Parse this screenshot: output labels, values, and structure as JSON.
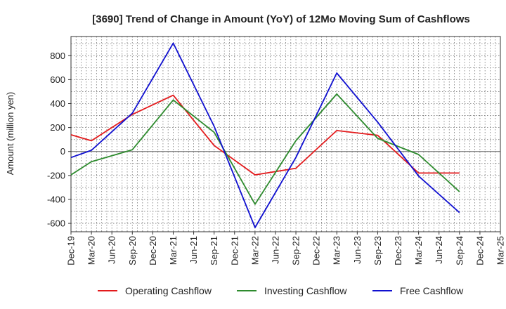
{
  "chart_data": {
    "type": "line",
    "title": "[3690]  Trend of Change in Amount (YoY) of 12Mo Moving Sum of Cashflows",
    "xlabel": "",
    "ylabel": "Amount (million yen)",
    "ylim": [
      -670,
      960
    ],
    "yticks": [
      -600,
      -400,
      -200,
      0,
      200,
      400,
      600,
      800
    ],
    "categories": [
      "Dec-19",
      "Mar-20",
      "Jun-20",
      "Sep-20",
      "Dec-20",
      "Mar-21",
      "Jun-21",
      "Sep-21",
      "Dec-21",
      "Mar-22",
      "Jun-22",
      "Sep-22",
      "Dec-22",
      "Mar-23",
      "Jun-23",
      "Sep-23",
      "Dec-23",
      "Mar-24",
      "Jun-24",
      "Sep-24",
      "Dec-24",
      "Mar-25"
    ],
    "grid": true,
    "legend_position": "bottom",
    "series": [
      {
        "name": "Operating Cashflow",
        "color": "#e31a1c",
        "values": [
          140,
          90,
          null,
          310,
          null,
          470,
          null,
          50,
          null,
          -195,
          null,
          -140,
          null,
          175,
          null,
          135,
          null,
          -180,
          null,
          -180,
          null,
          null
        ]
      },
      {
        "name": "Investing Cashflow",
        "color": "#2e8b2e",
        "values": [
          -195,
          -85,
          null,
          15,
          null,
          430,
          null,
          160,
          null,
          -440,
          null,
          90,
          null,
          480,
          null,
          110,
          null,
          -25,
          null,
          -335,
          null,
          null
        ]
      },
      {
        "name": "Free Cashflow",
        "color": "#1010d0",
        "values": [
          -50,
          10,
          null,
          320,
          null,
          905,
          null,
          210,
          null,
          -635,
          null,
          -50,
          null,
          655,
          null,
          245,
          null,
          -205,
          null,
          -510,
          null,
          null
        ]
      }
    ]
  }
}
